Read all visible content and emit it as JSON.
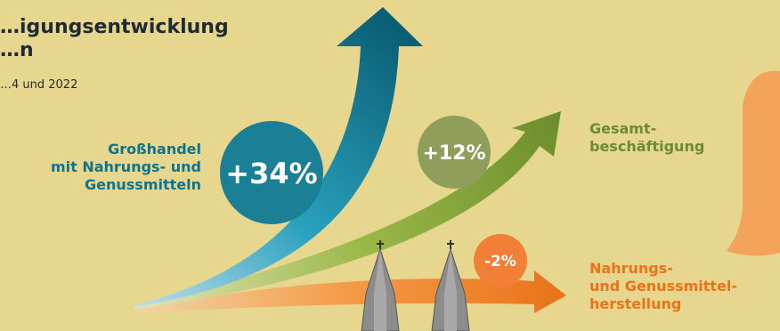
{
  "title": "…igungsentwicklung\n…n",
  "subtitle": "…4 und 2022",
  "colors": {
    "background": "#e6d68e",
    "wholesale": "#11738a",
    "total": "#6c8d2c",
    "food_production": "#e8731a"
  },
  "chart_data": {
    "type": "bar",
    "categories": [
      "Großhandel mit Nahrungs- und Genussmitteln",
      "Gesamtbeschäftigung",
      "Nahrungs- und Genussmittelherstellung"
    ],
    "series": [
      {
        "values": [
          34,
          12,
          -2
        ]
      }
    ],
    "data_labels": [
      "+34%",
      "+12%",
      "-2%"
    ],
    "unit": "%"
  },
  "labels": {
    "wholesale": "Großhandel\nmit Nahrungs- und\nGenussmitteln",
    "total": "Gesamt-\nbeschäftigung",
    "food_production": "Nahrungs-\nund Genussmittel-\nherstellung"
  }
}
